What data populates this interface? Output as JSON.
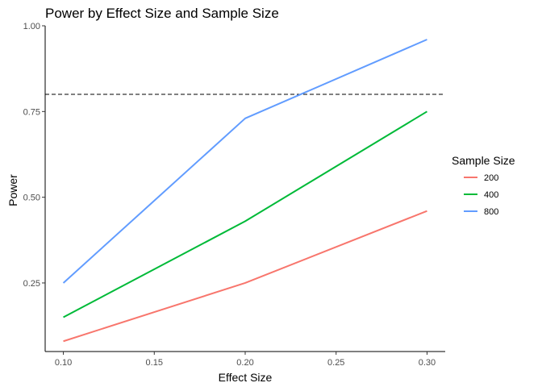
{
  "chart_data": {
    "type": "line",
    "title": "Power by Effect Size and Sample Size",
    "xlabel": "Effect Size",
    "ylabel": "Power",
    "x": [
      0.1,
      0.2,
      0.3
    ],
    "xlim": [
      0.09,
      0.31
    ],
    "ylim": [
      0.05,
      1.0
    ],
    "xticks": [
      "0.10",
      "0.15",
      "0.20",
      "0.25",
      "0.30"
    ],
    "xtick_values": [
      0.1,
      0.15,
      0.2,
      0.25,
      0.3
    ],
    "yticks": [
      "0.25",
      "0.50",
      "0.75",
      "1.00"
    ],
    "ytick_values": [
      0.25,
      0.5,
      0.75,
      1.0
    ],
    "reference_line": {
      "y": 0.8,
      "style": "dashed"
    },
    "grid": false,
    "legend": {
      "title": "Sample Size",
      "position": "right"
    },
    "series": [
      {
        "name": "200",
        "color": "#F8766D",
        "values": [
          0.08,
          0.25,
          0.46
        ]
      },
      {
        "name": "400",
        "color": "#00BA38",
        "values": [
          0.15,
          0.43,
          0.75
        ]
      },
      {
        "name": "800",
        "color": "#619CFF",
        "values": [
          0.25,
          0.73,
          0.96
        ]
      }
    ]
  }
}
